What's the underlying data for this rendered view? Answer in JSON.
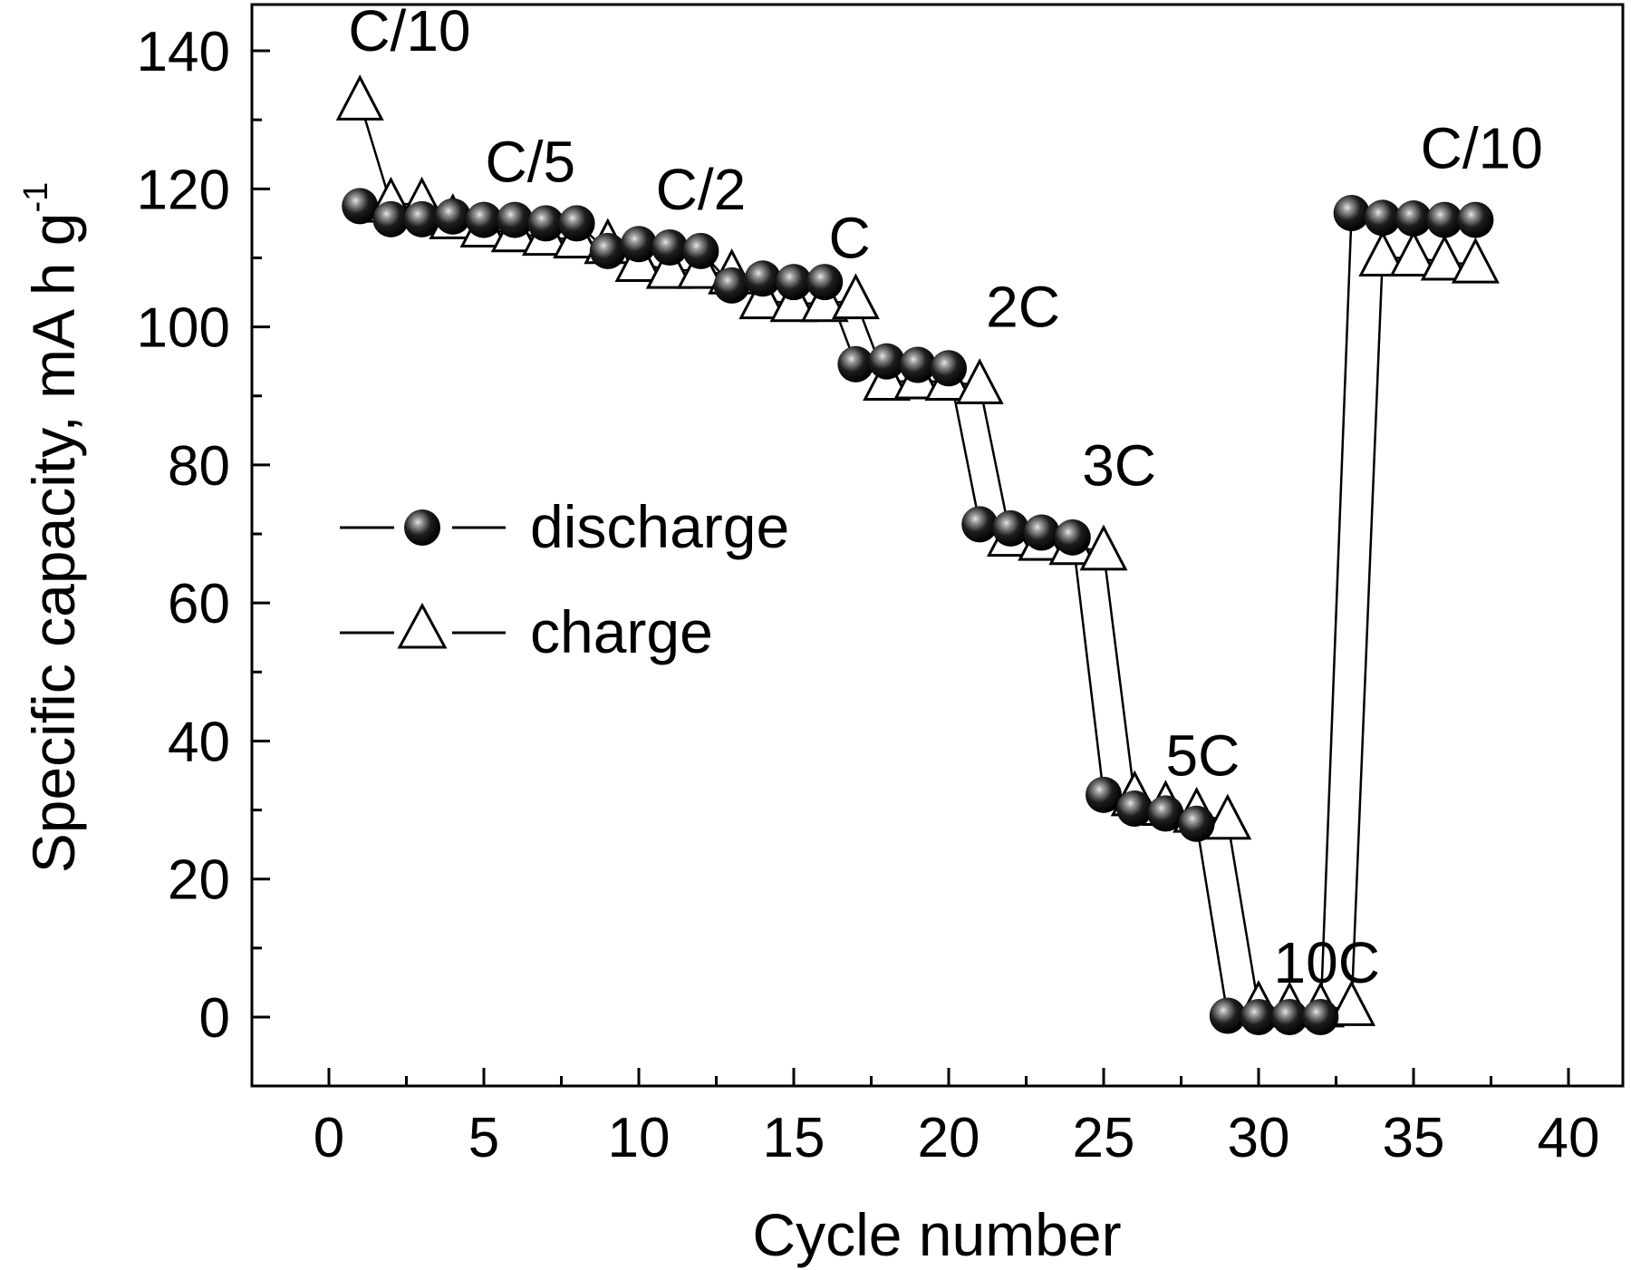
{
  "chart_data": {
    "type": "line",
    "title": "",
    "xlabel": "Cycle number",
    "ylabel": "Specific capacity, mA h g",
    "ylabel_superscript": "-1",
    "xlim": [
      -2.5,
      41.8
    ],
    "ylim": [
      -10,
      146
    ],
    "x_ticks": [
      0,
      5,
      10,
      15,
      20,
      25,
      30,
      35,
      40
    ],
    "x_tick_labels": [
      "0",
      "5",
      "10",
      "15",
      "20",
      "25",
      "30",
      "35",
      "40"
    ],
    "x_minor_ticks": [
      2.5,
      7.5,
      12.5,
      17.5,
      22.5,
      27.5,
      32.5,
      37.5
    ],
    "y_ticks": [
      0,
      20,
      40,
      60,
      80,
      100,
      120,
      140
    ],
    "y_tick_labels": [
      "0",
      "20",
      "40",
      "60",
      "80",
      "100",
      "120",
      "140"
    ],
    "y_minor_ticks": [
      10,
      30,
      50,
      70,
      90,
      110,
      130
    ],
    "grid": false,
    "legend_position": "center-left",
    "series": [
      {
        "name": "discharge",
        "marker": "filled-sphere",
        "points": [
          [
            1,
            117.5
          ],
          [
            2,
            115.6
          ],
          [
            3,
            115.6
          ],
          [
            4,
            116
          ],
          [
            5,
            115.5
          ],
          [
            6,
            115.5
          ],
          [
            7,
            115
          ],
          [
            8,
            115
          ],
          [
            9,
            111
          ],
          [
            10,
            112
          ],
          [
            11,
            111.5
          ],
          [
            12,
            111
          ],
          [
            13,
            106
          ],
          [
            14,
            107
          ],
          [
            15,
            106.5
          ],
          [
            16,
            106.5
          ],
          [
            17,
            94.6
          ],
          [
            18,
            95
          ],
          [
            19,
            94.5
          ],
          [
            20,
            94
          ],
          [
            21,
            71.4
          ],
          [
            22,
            70.8
          ],
          [
            23,
            70.2
          ],
          [
            24,
            69.5
          ],
          [
            25,
            32.2
          ],
          [
            26,
            30.2
          ],
          [
            27,
            29.5
          ],
          [
            28,
            28
          ],
          [
            29,
            0.2
          ],
          [
            30,
            0
          ],
          [
            31,
            0
          ],
          [
            32,
            0
          ],
          [
            33,
            116.5
          ],
          [
            34,
            115.8
          ],
          [
            35,
            115.7
          ],
          [
            36,
            115.5
          ],
          [
            37,
            115.5
          ]
        ]
      },
      {
        "name": "charge",
        "marker": "open-triangle",
        "points": [
          [
            1,
            132.6
          ],
          [
            2,
            117.8
          ],
          [
            3,
            117.8
          ],
          [
            4,
            115.4
          ],
          [
            5,
            114.2
          ],
          [
            6,
            113.5
          ],
          [
            7,
            113
          ],
          [
            8,
            112.6
          ],
          [
            9,
            111.8
          ],
          [
            10,
            109.2
          ],
          [
            11,
            108.2
          ],
          [
            12,
            108.2
          ],
          [
            13,
            107.4
          ],
          [
            14,
            103.8
          ],
          [
            15,
            103.4
          ],
          [
            16,
            103.4
          ],
          [
            17,
            103.8
          ],
          [
            18,
            92
          ],
          [
            19,
            92.2
          ],
          [
            20,
            92
          ],
          [
            21,
            91.5
          ],
          [
            22,
            69.4
          ],
          [
            23,
            68.8
          ],
          [
            24,
            68.2
          ],
          [
            25,
            67.4
          ],
          [
            26,
            31.8
          ],
          [
            27,
            30.4
          ],
          [
            28,
            29.4
          ],
          [
            29,
            28.4
          ],
          [
            30,
            1.4
          ],
          [
            31,
            1.2
          ],
          [
            32,
            1.2
          ],
          [
            33,
            1.4
          ],
          [
            34,
            110
          ],
          [
            35,
            110
          ],
          [
            36,
            109.4
          ],
          [
            37,
            109
          ]
        ]
      }
    ],
    "annotations": [
      {
        "text": "C/10",
        "x": 2.6,
        "y": 140
      },
      {
        "text": "C/5",
        "x": 6.5,
        "y": 121
      },
      {
        "text": "C/2",
        "x": 12,
        "y": 117
      },
      {
        "text": "C",
        "x": 16.8,
        "y": 110
      },
      {
        "text": "2C",
        "x": 22.4,
        "y": 100
      },
      {
        "text": "3C",
        "x": 25.5,
        "y": 77
      },
      {
        "text": "5C",
        "x": 28.2,
        "y": 35
      },
      {
        "text": "10C",
        "x": 32.2,
        "y": 5
      },
      {
        "text": "C/10",
        "x": 37.2,
        "y": 123
      }
    ]
  },
  "legend": {
    "items": [
      {
        "label": "discharge",
        "marker": "filled-sphere"
      },
      {
        "label": "charge",
        "marker": "open-triangle"
      }
    ]
  },
  "colors": {
    "axis": "#000000",
    "discharge_fill": "#111111",
    "discharge_highlight": "#bbbbbb",
    "charge_fill": "#ffffff",
    "charge_stroke": "#000000",
    "background": "#ffffff"
  }
}
